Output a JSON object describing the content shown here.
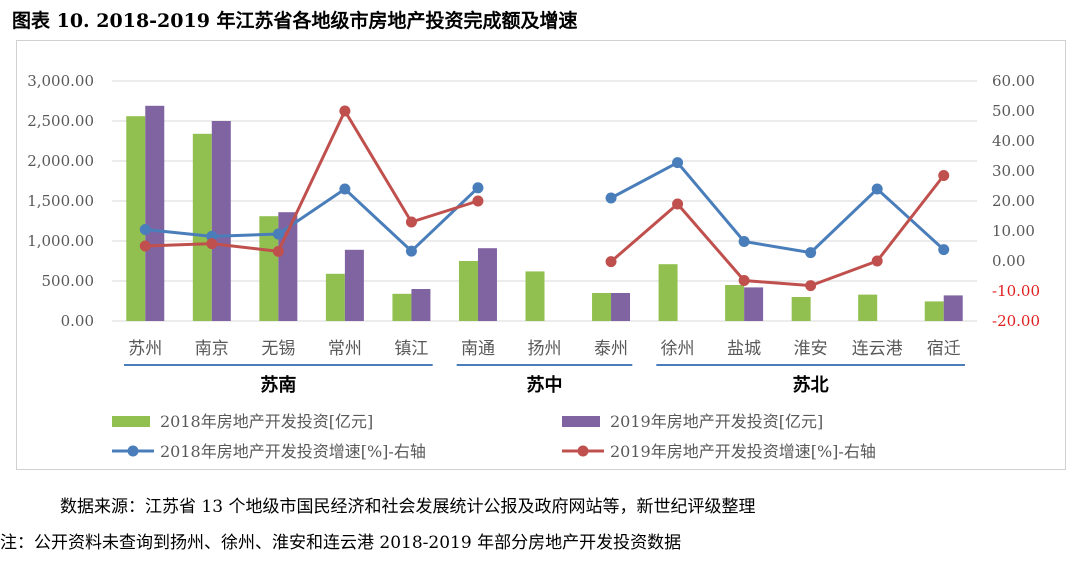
{
  "title": "图表 10. 2018-2019 年江苏省各地级市房地产投资完成额及增速",
  "chart_data": {
    "type": "bar",
    "categories": [
      "苏州",
      "南京",
      "无锡",
      "常州",
      "镇江",
      "南通",
      "扬州",
      "泰州",
      "徐州",
      "盐城",
      "淮安",
      "连云港",
      "宿迁"
    ],
    "groups": [
      {
        "label": "苏南",
        "start": 0,
        "end": 4
      },
      {
        "label": "苏中",
        "start": 5,
        "end": 7
      },
      {
        "label": "苏北",
        "start": 8,
        "end": 12
      }
    ],
    "series": [
      {
        "name": "2018年房地产开发投资[亿元]",
        "kind": "bar",
        "axis": "left",
        "color": "#92c050",
        "values": [
          2560,
          2340,
          1310,
          590,
          340,
          750,
          620,
          350,
          710,
          450,
          300,
          330,
          245
        ]
      },
      {
        "name": "2019年房地产开发投资[亿元]",
        "kind": "bar",
        "axis": "left",
        "color": "#8064a2",
        "values": [
          2690,
          2500,
          1360,
          890,
          400,
          910,
          null,
          350,
          null,
          420,
          null,
          null,
          320
        ]
      },
      {
        "name": "2018年房地产开发投资增速[%]-右轴",
        "kind": "line",
        "axis": "right",
        "color": "#4a7ebb",
        "segments": [
          [
            [
              0,
              10.5
            ],
            [
              1,
              8.2
            ],
            [
              2,
              9.0
            ],
            [
              3,
              24.0
            ],
            [
              4,
              3.3
            ],
            [
              5,
              24.4
            ]
          ],
          [
            [
              7,
              21.0
            ],
            [
              8,
              32.8
            ],
            [
              9,
              6.5
            ],
            [
              10,
              2.8
            ],
            [
              11,
              24.0
            ],
            [
              12,
              3.8
            ]
          ]
        ]
      },
      {
        "name": "2019年房地产开发投资增速[%]-右轴",
        "kind": "line",
        "axis": "right",
        "color": "#c0504d",
        "segments": [
          [
            [
              0,
              5.0
            ],
            [
              1,
              5.8
            ],
            [
              2,
              3.2
            ],
            [
              3,
              50.0
            ],
            [
              4,
              13.0
            ],
            [
              5,
              20.0
            ]
          ],
          [
            [
              7,
              -0.2
            ],
            [
              8,
              19.0
            ],
            [
              9,
              -6.5
            ],
            [
              10,
              -8.2
            ],
            [
              11,
              0.0
            ],
            [
              12,
              28.5
            ]
          ]
        ]
      }
    ],
    "y_left": {
      "min": 0,
      "max": 3000,
      "ticks": [
        "0.00",
        "500.00",
        "1,000.00",
        "1,500.00",
        "2,000.00",
        "2,500.00",
        "3,000.00"
      ]
    },
    "y_right": {
      "min": -20,
      "max": 60,
      "ticks": [
        "-20.00",
        "-10.00",
        "0.00",
        "10.00",
        "20.00",
        "30.00",
        "40.00",
        "50.00",
        "60.00"
      ]
    },
    "grid": true,
    "legend_position": "bottom"
  },
  "footer": {
    "source": "数据来源：江苏省 13 个地级市国民经济和社会发展统计公报及政府网站等，新世纪评级整理",
    "note": "注：公开资料未查询到扬州、徐州、淮安和连云港 2018-2019 年部分房地产开发投资数据"
  }
}
